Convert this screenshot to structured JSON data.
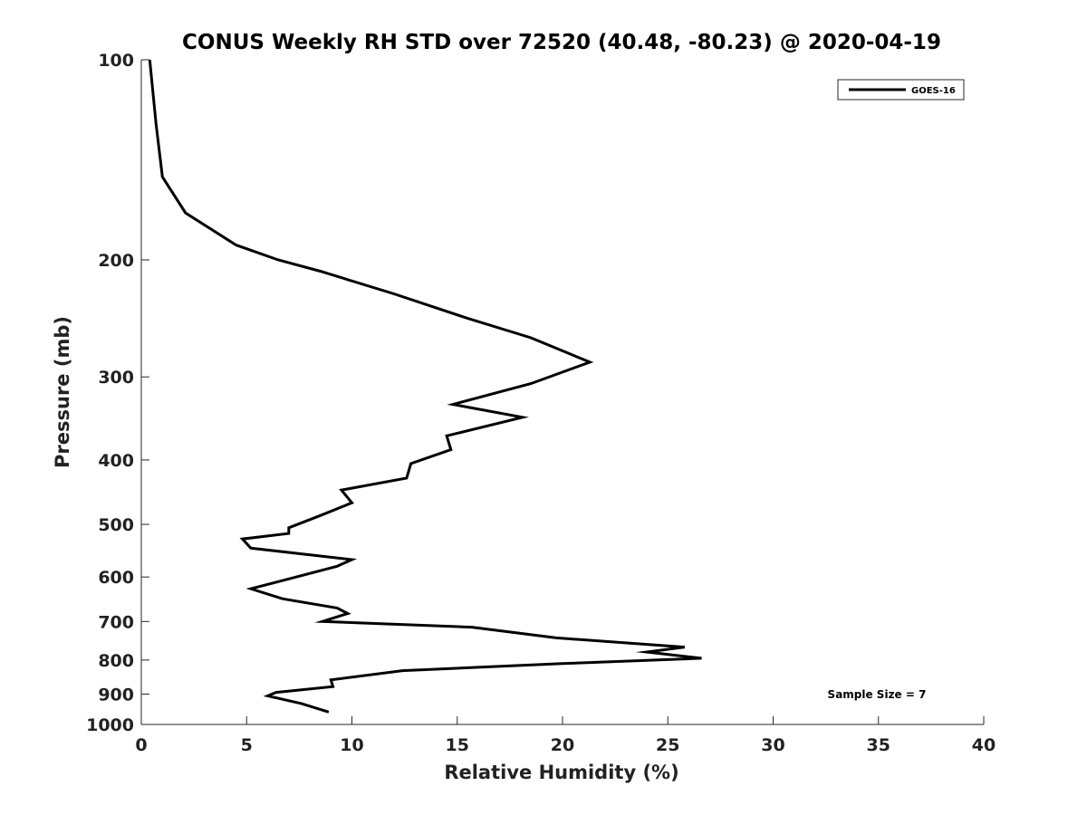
{
  "chart_data": {
    "type": "line",
    "title": "CONUS Weekly RH STD over 72520 (40.48, -80.23) @ 2020-04-19",
    "xlabel": "Relative Humidity (%)",
    "ylabel": "Pressure (mb)",
    "xlim": [
      0,
      40
    ],
    "ylim": [
      100,
      1000
    ],
    "y_scale": "log",
    "y_reversed": true,
    "x_ticks": [
      0,
      5,
      10,
      15,
      20,
      25,
      30,
      35,
      40
    ],
    "x_tick_labels": [
      "0",
      "5",
      "10",
      "15",
      "20",
      "25",
      "30",
      "35",
      "40"
    ],
    "y_ticks": [
      100,
      200,
      300,
      400,
      500,
      600,
      700,
      800,
      900,
      1000
    ],
    "y_tick_labels": [
      "100",
      "200",
      "300",
      "400",
      "500",
      "600",
      "700",
      "800",
      "900",
      "1000"
    ],
    "grid": false,
    "legend_position": "top-right",
    "annotation": "Sample Size = 7",
    "series": [
      {
        "name": "GOES-16",
        "color": "#000000",
        "points": [
          [
            0.4,
            100
          ],
          [
            0.7,
            125
          ],
          [
            1.0,
            150
          ],
          [
            2.1,
            170
          ],
          [
            4.5,
            190
          ],
          [
            6.5,
            200
          ],
          [
            8.5,
            208
          ],
          [
            12.0,
            225
          ],
          [
            15.5,
            245
          ],
          [
            18.5,
            262
          ],
          [
            21.3,
            285
          ],
          [
            18.5,
            307
          ],
          [
            14.8,
            330
          ],
          [
            18.1,
            345
          ],
          [
            14.5,
            368
          ],
          [
            14.7,
            386
          ],
          [
            12.8,
            405
          ],
          [
            12.6,
            426
          ],
          [
            9.5,
            444
          ],
          [
            10.0,
            464
          ],
          [
            8.5,
            485
          ],
          [
            7.0,
            506
          ],
          [
            7.0,
            516
          ],
          [
            4.8,
            526
          ],
          [
            5.2,
            543
          ],
          [
            10.0,
            565
          ],
          [
            9.3,
            578
          ],
          [
            7.0,
            604
          ],
          [
            5.2,
            625
          ],
          [
            6.7,
            647
          ],
          [
            9.3,
            668
          ],
          [
            9.8,
            681
          ],
          [
            8.6,
            700
          ],
          [
            15.7,
            714
          ],
          [
            19.7,
            741
          ],
          [
            25.8,
            765
          ],
          [
            24.0,
            778
          ],
          [
            26.6,
            795
          ],
          [
            20.0,
            810
          ],
          [
            12.4,
            830
          ],
          [
            9.0,
            857
          ],
          [
            9.1,
            877
          ],
          [
            6.4,
            895
          ],
          [
            6.0,
            906
          ],
          [
            7.6,
            930
          ],
          [
            8.9,
            958
          ]
        ]
      }
    ]
  }
}
